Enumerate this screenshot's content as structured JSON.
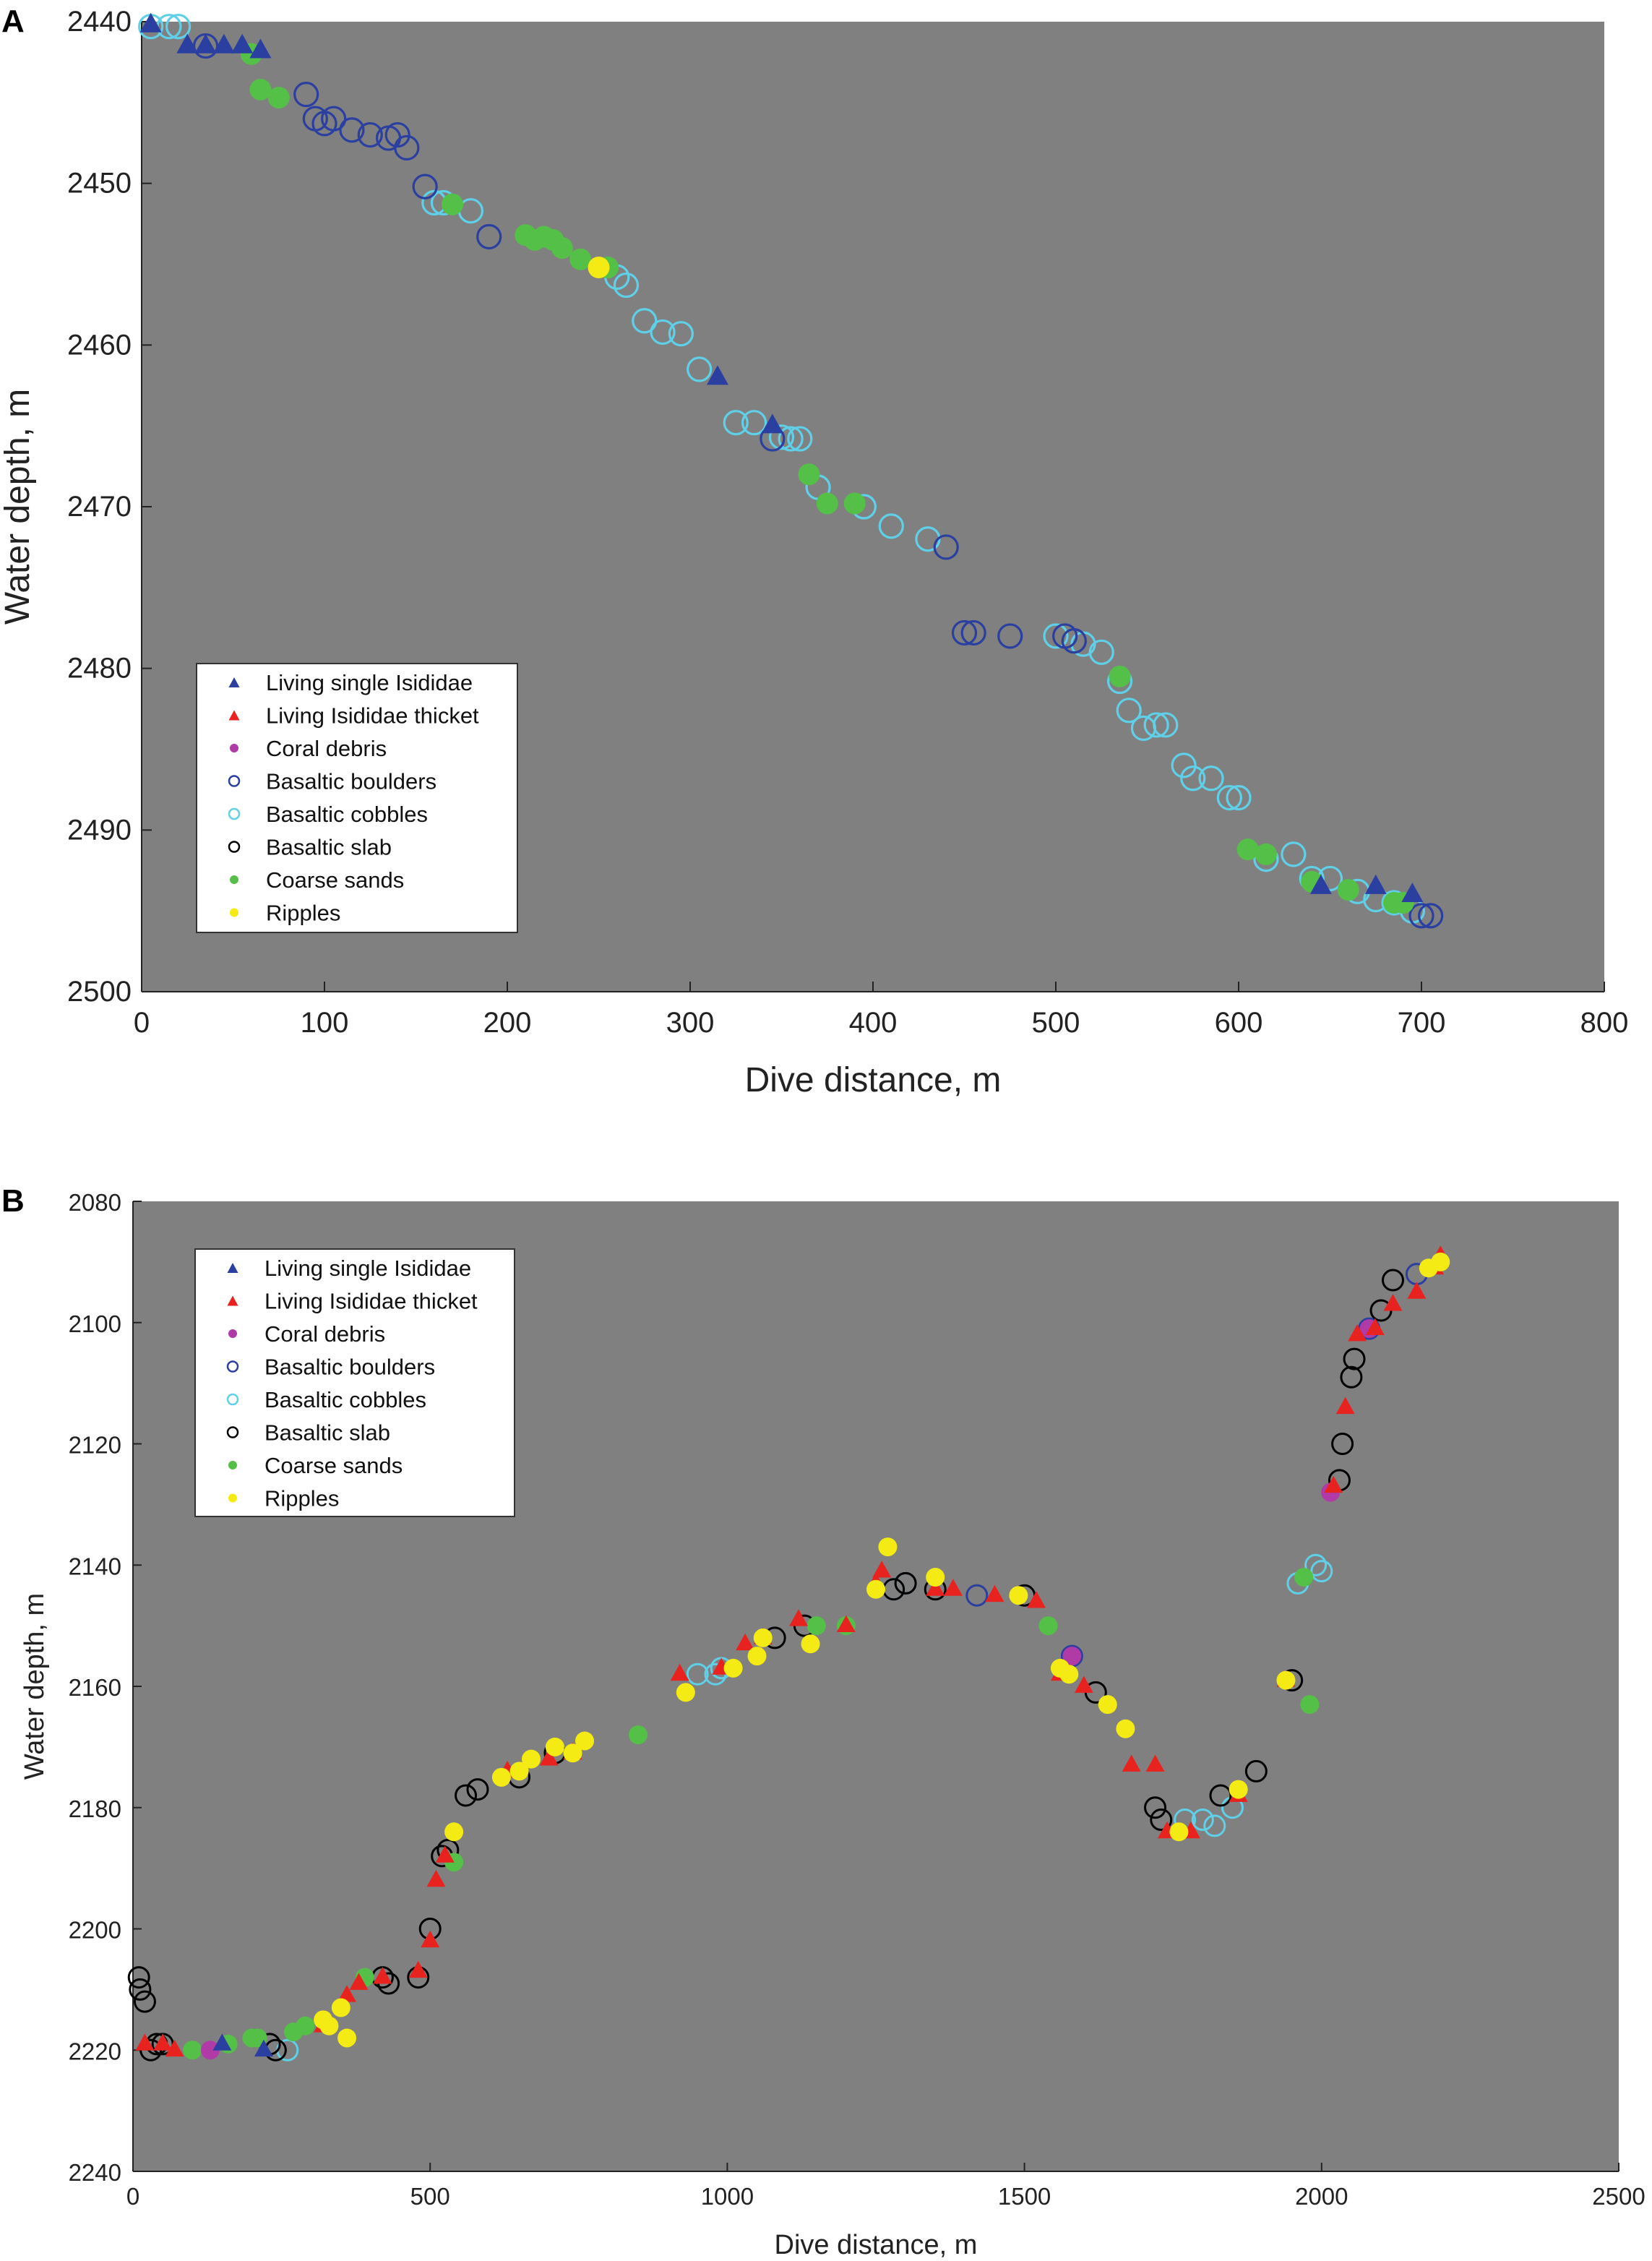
{
  "colors": {
    "background": "#808080",
    "living_single": "#2b3fa0",
    "living_thicket": "#e8231f",
    "coral_debris": "#b03aa6",
    "boulders": "#2b3fa0",
    "cobbles": "#5fd0e8",
    "slab": "#000000",
    "sands": "#55c047",
    "ripples": "#f4ea14"
  },
  "legend_items": [
    {
      "label": "Living single Isididae",
      "marker": "tri",
      "color": "living_single"
    },
    {
      "label": "Living Isididae thicket",
      "marker": "tri",
      "color": "living_thicket"
    },
    {
      "label": "Coral debris",
      "marker": "dot",
      "color": "coral_debris"
    },
    {
      "label": "Basaltic boulders",
      "marker": "ring",
      "color": "boulders"
    },
    {
      "label": "Basaltic cobbles",
      "marker": "ring",
      "color": "cobbles"
    },
    {
      "label": "Basaltic slab",
      "marker": "ring",
      "color": "slab"
    },
    {
      "label": "Coarse sands",
      "marker": "dot",
      "color": "sands"
    },
    {
      "label": "Ripples",
      "marker": "dot",
      "color": "ripples"
    }
  ],
  "chart_data": [
    {
      "panel": "A",
      "type": "scatter",
      "xlabel": "Dive distance, m",
      "ylabel": "Water depth, m",
      "xlim": [
        0,
        800
      ],
      "ylim": [
        2440,
        2500
      ],
      "y_reversed": true,
      "xticks": [
        0,
        100,
        200,
        300,
        400,
        500,
        600,
        700,
        800
      ],
      "yticks": [
        2440,
        2450,
        2460,
        2470,
        2480,
        2490,
        2500
      ],
      "legend_position": "lower-left",
      "series": [
        {
          "name": "Living single Isididae",
          "points": [
            [
              5,
              2440.2
            ],
            [
              25,
              2441.5
            ],
            [
              35,
              2441.5
            ],
            [
              45,
              2441.5
            ],
            [
              55,
              2441.5
            ],
            [
              65,
              2441.8
            ],
            [
              315,
              2462
            ],
            [
              345,
              2465
            ],
            [
              645,
              2493.5
            ],
            [
              675,
              2493.5
            ],
            [
              695,
              2494
            ]
          ]
        },
        {
          "name": "Basaltic boulders",
          "points": [
            [
              35,
              2441.5
            ],
            [
              90,
              2444.5
            ],
            [
              95,
              2446
            ],
            [
              100,
              2446.3
            ],
            [
              105,
              2446
            ],
            [
              115,
              2446.7
            ],
            [
              125,
              2447
            ],
            [
              135,
              2447.2
            ],
            [
              140,
              2447
            ],
            [
              145,
              2447.8
            ],
            [
              155,
              2450.2
            ],
            [
              190,
              2453.3
            ],
            [
              345,
              2465.8
            ],
            [
              440,
              2472.5
            ],
            [
              450,
              2477.8
            ],
            [
              455,
              2477.8
            ],
            [
              475,
              2478
            ],
            [
              505,
              2478
            ],
            [
              510,
              2478.3
            ],
            [
              700,
              2495.3
            ],
            [
              705,
              2495.3
            ]
          ]
        },
        {
          "name": "Basaltic cobbles",
          "points": [
            [
              5,
              2440.3
            ],
            [
              15,
              2440.3
            ],
            [
              20,
              2440.3
            ],
            [
              160,
              2451.2
            ],
            [
              165,
              2451.2
            ],
            [
              180,
              2451.7
            ],
            [
              260,
              2455.8
            ],
            [
              265,
              2456.3
            ],
            [
              275,
              2458.5
            ],
            [
              285,
              2459.2
            ],
            [
              295,
              2459.3
            ],
            [
              305,
              2461.5
            ],
            [
              325,
              2464.8
            ],
            [
              335,
              2464.8
            ],
            [
              350,
              2465.7
            ],
            [
              355,
              2465.8
            ],
            [
              360,
              2465.8
            ],
            [
              370,
              2468.8
            ],
            [
              395,
              2470
            ],
            [
              410,
              2471.2
            ],
            [
              430,
              2472
            ],
            [
              500,
              2478
            ],
            [
              515,
              2478.5
            ],
            [
              525,
              2479
            ],
            [
              535,
              2480.8
            ],
            [
              540,
              2482.6
            ],
            [
              548,
              2483.7
            ],
            [
              555,
              2483.5
            ],
            [
              560,
              2483.5
            ],
            [
              570,
              2486
            ],
            [
              575,
              2486.8
            ],
            [
              585,
              2486.8
            ],
            [
              595,
              2488
            ],
            [
              600,
              2488
            ],
            [
              615,
              2491.8
            ],
            [
              630,
              2491.5
            ],
            [
              640,
              2493
            ],
            [
              650,
              2493
            ],
            [
              665,
              2493.8
            ],
            [
              675,
              2494.3
            ],
            [
              685,
              2494.5
            ],
            [
              695,
              2495
            ]
          ]
        },
        {
          "name": "Coarse sands",
          "points": [
            [
              60,
              2442
            ],
            [
              65,
              2444.2
            ],
            [
              75,
              2444.7
            ],
            [
              170,
              2451.3
            ],
            [
              210,
              2453.2
            ],
            [
              215,
              2453.5
            ],
            [
              220,
              2453.3
            ],
            [
              225,
              2453.5
            ],
            [
              230,
              2454
            ],
            [
              240,
              2454.7
            ],
            [
              255,
              2455.2
            ],
            [
              365,
              2468
            ],
            [
              375,
              2469.8
            ],
            [
              390,
              2469.8
            ],
            [
              535,
              2480.5
            ],
            [
              605,
              2491.2
            ],
            [
              615,
              2491.5
            ],
            [
              640,
              2493.2
            ],
            [
              660,
              2493.7
            ],
            [
              685,
              2494.5
            ],
            [
              690,
              2494.5
            ]
          ]
        },
        {
          "name": "Ripples",
          "points": [
            [
              250,
              2455.2
            ]
          ]
        }
      ]
    },
    {
      "panel": "B",
      "type": "scatter",
      "xlabel": "Dive distance, m",
      "ylabel": "Water depth, m",
      "xlim": [
        0,
        2500
      ],
      "ylim": [
        2080,
        2240
      ],
      "y_reversed": true,
      "xticks": [
        0,
        500,
        1000,
        1500,
        2000,
        2500
      ],
      "yticks": [
        2080,
        2100,
        2120,
        2140,
        2160,
        2180,
        2200,
        2220,
        2240
      ],
      "legend_position": "top-left",
      "series": [
        {
          "name": "Living single Isididae",
          "points": [
            [
              150,
              2219
            ],
            [
              220,
              2220
            ]
          ]
        },
        {
          "name": "Living Isididae thicket",
          "points": [
            [
              20,
              2219
            ],
            [
              50,
              2219
            ],
            [
              70,
              2220
            ],
            [
              320,
              2216
            ],
            [
              360,
              2211
            ],
            [
              380,
              2209
            ],
            [
              420,
              2208
            ],
            [
              480,
              2207
            ],
            [
              500,
              2202
            ],
            [
              510,
              2192
            ],
            [
              525,
              2188
            ],
            [
              630,
              2174
            ],
            [
              700,
              2172
            ],
            [
              740,
              2171
            ],
            [
              920,
              2158
            ],
            [
              990,
              2157
            ],
            [
              1030,
              2153
            ],
            [
              1060,
              2152
            ],
            [
              1120,
              2149
            ],
            [
              1200,
              2150
            ],
            [
              1250,
              2143
            ],
            [
              1260,
              2141
            ],
            [
              1350,
              2144
            ],
            [
              1380,
              2144
            ],
            [
              1450,
              2145
            ],
            [
              1520,
              2146
            ],
            [
              1560,
              2158
            ],
            [
              1600,
              2160
            ],
            [
              1680,
              2173
            ],
            [
              1720,
              2173
            ],
            [
              1740,
              2184
            ],
            [
              1780,
              2184
            ],
            [
              1860,
              2178
            ],
            [
              1940,
              2159
            ],
            [
              2020,
              2127
            ],
            [
              2040,
              2114
            ],
            [
              2060,
              2102
            ],
            [
              2090,
              2101
            ],
            [
              2120,
              2097
            ],
            [
              2160,
              2095
            ],
            [
              2190,
              2091
            ],
            [
              2200,
              2089
            ]
          ]
        },
        {
          "name": "Coral debris",
          "points": [
            [
              130,
              2220
            ],
            [
              1580,
              2155
            ],
            [
              2015,
              2128
            ],
            [
              2080,
              2101
            ]
          ]
        },
        {
          "name": "Basaltic boulders",
          "points": [
            [
              1300,
              2143
            ],
            [
              1420,
              2145
            ],
            [
              1580,
              2155
            ],
            [
              2080,
              2101
            ],
            [
              2160,
              2092
            ]
          ]
        },
        {
          "name": "Basaltic cobbles",
          "points": [
            [
              260,
              2220
            ],
            [
              950,
              2158
            ],
            [
              980,
              2158
            ],
            [
              990,
              2157
            ],
            [
              1280,
              2144
            ],
            [
              1770,
              2182
            ],
            [
              1800,
              2182
            ],
            [
              1820,
              2183
            ],
            [
              1850,
              2180
            ],
            [
              1960,
              2143
            ],
            [
              1990,
              2140
            ],
            [
              2000,
              2141
            ]
          ]
        },
        {
          "name": "Basaltic slab",
          "points": [
            [
              10,
              2208
            ],
            [
              12,
              2210
            ],
            [
              20,
              2212
            ],
            [
              30,
              2220
            ],
            [
              40,
              2219
            ],
            [
              50,
              2219
            ],
            [
              230,
              2219
            ],
            [
              240,
              2220
            ],
            [
              420,
              2208
            ],
            [
              430,
              2209
            ],
            [
              480,
              2208
            ],
            [
              500,
              2200
            ],
            [
              520,
              2188
            ],
            [
              530,
              2187
            ],
            [
              560,
              2178
            ],
            [
              580,
              2177
            ],
            [
              650,
              2175
            ],
            [
              710,
              2171
            ],
            [
              1080,
              2152
            ],
            [
              1130,
              2150
            ],
            [
              1280,
              2144
            ],
            [
              1300,
              2143
            ],
            [
              1350,
              2144
            ],
            [
              1500,
              2145
            ],
            [
              1620,
              2161
            ],
            [
              1720,
              2180
            ],
            [
              1730,
              2182
            ],
            [
              1830,
              2178
            ],
            [
              1890,
              2174
            ],
            [
              1950,
              2159
            ],
            [
              2030,
              2126
            ],
            [
              2035,
              2120
            ],
            [
              2050,
              2109
            ],
            [
              2055,
              2106
            ],
            [
              2100,
              2098
            ],
            [
              2120,
              2093
            ]
          ]
        },
        {
          "name": "Coarse sands",
          "points": [
            [
              100,
              2220
            ],
            [
              160,
              2219
            ],
            [
              200,
              2218
            ],
            [
              210,
              2218
            ],
            [
              270,
              2217
            ],
            [
              290,
              2216
            ],
            [
              390,
              2208
            ],
            [
              540,
              2189
            ],
            [
              850,
              2168
            ],
            [
              1150,
              2150
            ],
            [
              1200,
              2150
            ],
            [
              1540,
              2150
            ],
            [
              1970,
              2142
            ],
            [
              1980,
              2163
            ]
          ]
        },
        {
          "name": "Ripples",
          "points": [
            [
              320,
              2215
            ],
            [
              330,
              2216
            ],
            [
              350,
              2213
            ],
            [
              360,
              2218
            ],
            [
              540,
              2184
            ],
            [
              620,
              2175
            ],
            [
              650,
              2174
            ],
            [
              670,
              2172
            ],
            [
              710,
              2170
            ],
            [
              740,
              2171
            ],
            [
              760,
              2169
            ],
            [
              930,
              2161
            ],
            [
              1010,
              2157
            ],
            [
              1050,
              2155
            ],
            [
              1060,
              2152
            ],
            [
              1140,
              2153
            ],
            [
              1250,
              2144
            ],
            [
              1270,
              2137
            ],
            [
              1350,
              2142
            ],
            [
              1490,
              2145
            ],
            [
              1560,
              2157
            ],
            [
              1575,
              2158
            ],
            [
              1640,
              2163
            ],
            [
              1670,
              2167
            ],
            [
              1760,
              2184
            ],
            [
              1860,
              2177
            ],
            [
              1940,
              2159
            ],
            [
              2180,
              2091
            ],
            [
              2200,
              2090
            ]
          ]
        }
      ]
    }
  ]
}
